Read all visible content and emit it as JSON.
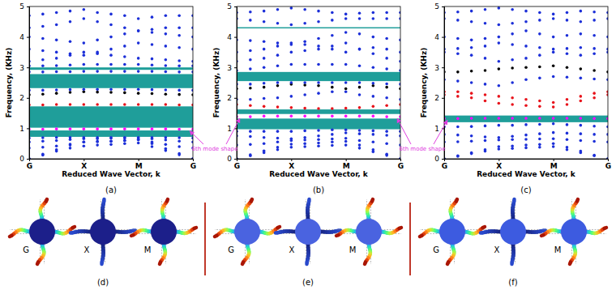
{
  "chart_data": [
    {
      "type": "scatter",
      "title": "(a)",
      "x_label": "Reduced Wave Vector, k",
      "y_label": "Frequency, (KHz)",
      "x": [
        0,
        0.25,
        0.5,
        0.75,
        1,
        1.25,
        1.5,
        1.75,
        2,
        2.25,
        2.5,
        2.75,
        3
      ],
      "xlim": [
        0,
        3
      ],
      "xticks": [
        {
          "value": 0,
          "label": "G"
        },
        {
          "value": 1,
          "label": "X"
        },
        {
          "value": 2,
          "label": "M"
        },
        {
          "value": 3,
          "label": "G"
        }
      ],
      "ylim": [
        0,
        5
      ],
      "yticks": [
        0,
        1,
        2,
        3,
        4,
        5
      ],
      "grid": false,
      "marker": "dot",
      "annotation": "6th mode shape",
      "band_gaps": [
        [
          0.72,
          0.93
        ],
        [
          1.02,
          1.72
        ],
        [
          2.32,
          2.78
        ],
        [
          2.92,
          3.0
        ]
      ],
      "series": [
        {
          "color": "#1c2fd8",
          "values": [
            0,
            0.12,
            0.25,
            0.35,
            0.42,
            0.45,
            0.47,
            0.5,
            0.52,
            0.4,
            0.27,
            0.13,
            0
          ]
        },
        {
          "color": "#1c2fd8",
          "values": [
            0,
            0.15,
            0.3,
            0.45,
            0.55,
            0.57,
            0.58,
            0.6,
            0.62,
            0.5,
            0.33,
            0.17,
            0
          ]
        },
        {
          "color": "#1c2fd8",
          "values": [
            0.35,
            0.38,
            0.42,
            0.48,
            0.55,
            0.56,
            0.57,
            0.6,
            0.63,
            0.55,
            0.47,
            0.4,
            0.35
          ]
        },
        {
          "color": "#1c2fd8",
          "values": [
            0.55,
            0.58,
            0.6,
            0.63,
            0.66,
            0.66,
            0.67,
            0.68,
            0.68,
            0.66,
            0.62,
            0.58,
            0.55
          ]
        },
        {
          "color": "#1c2fd8",
          "values": [
            0.68,
            0.69,
            0.7,
            0.7,
            0.7,
            0.7,
            0.7,
            0.7,
            0.7,
            0.7,
            0.7,
            0.69,
            0.68
          ]
        },
        {
          "color": "#ff00ff",
          "values": [
            0.97,
            0.97,
            0.98,
            0.98,
            0.98,
            0.98,
            0.98,
            0.98,
            0.98,
            0.98,
            0.98,
            0.97,
            0.97
          ]
        },
        {
          "color": "#e8141c",
          "values": [
            1.77,
            1.77,
            1.78,
            1.78,
            1.78,
            1.78,
            1.78,
            1.78,
            1.78,
            1.78,
            1.78,
            1.77,
            1.77
          ]
        },
        {
          "color": "#000000",
          "values": [
            2.1,
            2.12,
            2.15,
            2.18,
            2.2,
            2.19,
            2.18,
            2.17,
            2.15,
            2.14,
            2.12,
            2.11,
            2.1
          ]
        },
        {
          "color": "#1c2fd8",
          "values": [
            2.25,
            2.25,
            2.26,
            2.27,
            2.28,
            2.28,
            2.28,
            2.28,
            2.28,
            2.27,
            2.26,
            2.25,
            2.25
          ]
        },
        {
          "color": "#1c2fd8",
          "values": [
            2.85,
            2.85,
            2.86,
            2.86,
            2.87,
            2.87,
            2.87,
            2.87,
            2.87,
            2.87,
            2.86,
            2.85,
            2.85
          ]
        },
        {
          "color": "#1c2fd8",
          "values": [
            3.05,
            3.05,
            3.06,
            3.08,
            3.1,
            3.1,
            3.1,
            3.1,
            3.1,
            3.08,
            3.06,
            3.05,
            3.05
          ]
        },
        {
          "color": "#1c2fd8",
          "values": [
            3.2,
            3.25,
            3.3,
            3.4,
            3.5,
            3.45,
            3.4,
            3.35,
            3.3,
            3.28,
            3.25,
            3.22,
            3.2
          ]
        },
        {
          "color": "#1c2fd8",
          "values": [
            3.6,
            3.55,
            3.5,
            3.45,
            3.4,
            3.5,
            3.6,
            3.7,
            3.8,
            3.75,
            3.7,
            3.65,
            3.6
          ]
        },
        {
          "color": "#1c2fd8",
          "values": [
            4.0,
            3.95,
            3.9,
            3.85,
            3.8,
            3.9,
            4.0,
            4.1,
            4.2,
            4.15,
            4.1,
            4.05,
            4.0
          ]
        },
        {
          "color": "#1c2fd8",
          "values": [
            4.3,
            4.35,
            4.4,
            4.5,
            4.6,
            4.5,
            4.4,
            4.3,
            4.2,
            4.25,
            4.3,
            4.3,
            4.3
          ]
        },
        {
          "color": "#1c2fd8",
          "values": [
            4.7,
            4.75,
            4.8,
            4.85,
            4.9,
            4.8,
            4.75,
            4.7,
            4.6,
            4.65,
            4.7,
            4.7,
            4.7
          ]
        }
      ]
    },
    {
      "type": "scatter",
      "title": "(b)",
      "x_label": "Reduced Wave Vector, k",
      "y_label": "Frequency, (KHz)",
      "x": [
        0,
        0.25,
        0.5,
        0.75,
        1,
        1.25,
        1.5,
        1.75,
        2,
        2.25,
        2.5,
        2.75,
        3
      ],
      "xlim": [
        0,
        3
      ],
      "xticks": [
        {
          "value": 0,
          "label": "G"
        },
        {
          "value": 1,
          "label": "X"
        },
        {
          "value": 2,
          "label": "M"
        },
        {
          "value": 3,
          "label": "G"
        }
      ],
      "ylim": [
        0,
        5
      ],
      "yticks": [
        0,
        1,
        2,
        3,
        4,
        5
      ],
      "grid": false,
      "marker": "dot",
      "band_gaps": [
        [
          0.97,
          1.32
        ],
        [
          1.47,
          1.62
        ],
        [
          2.55,
          2.85
        ],
        [
          4.28,
          4.32
        ]
      ],
      "series": [
        {
          "color": "#1c2fd8",
          "values": [
            0,
            0.1,
            0.2,
            0.3,
            0.38,
            0.4,
            0.42,
            0.44,
            0.45,
            0.35,
            0.23,
            0.11,
            0
          ]
        },
        {
          "color": "#1c2fd8",
          "values": [
            0,
            0.13,
            0.26,
            0.38,
            0.48,
            0.5,
            0.52,
            0.55,
            0.57,
            0.45,
            0.3,
            0.15,
            0
          ]
        },
        {
          "color": "#1c2fd8",
          "values": [
            0.45,
            0.47,
            0.5,
            0.55,
            0.6,
            0.62,
            0.63,
            0.65,
            0.67,
            0.6,
            0.55,
            0.5,
            0.45
          ]
        },
        {
          "color": "#1c2fd8",
          "values": [
            0.75,
            0.73,
            0.7,
            0.68,
            0.66,
            0.7,
            0.75,
            0.8,
            0.85,
            0.82,
            0.8,
            0.77,
            0.75
          ]
        },
        {
          "color": "#1c2fd8",
          "values": [
            0.9,
            0.9,
            0.9,
            0.9,
            0.9,
            0.92,
            0.93,
            0.95,
            0.95,
            0.93,
            0.92,
            0.9,
            0.9
          ]
        },
        {
          "color": "#ff00ff",
          "values": [
            1.38,
            1.38,
            1.4,
            1.4,
            1.4,
            1.4,
            1.4,
            1.4,
            1.4,
            1.4,
            1.4,
            1.38,
            1.38
          ]
        },
        {
          "color": "#e8141c",
          "values": [
            1.78,
            1.75,
            1.72,
            1.7,
            1.68,
            1.66,
            1.65,
            1.65,
            1.66,
            1.68,
            1.72,
            1.75,
            1.78
          ]
        },
        {
          "color": "#1c2fd8",
          "values": [
            1.95,
            1.95,
            1.98,
            2.0,
            2.05,
            2.1,
            2.15,
            2.2,
            2.2,
            2.1,
            2.05,
            2.0,
            1.95
          ]
        },
        {
          "color": "#000000",
          "values": [
            2.3,
            2.32,
            2.35,
            2.4,
            2.45,
            2.42,
            2.4,
            2.35,
            2.3,
            2.35,
            2.4,
            2.35,
            2.3
          ]
        },
        {
          "color": "#1c2fd8",
          "values": [
            2.45,
            2.45,
            2.48,
            2.5,
            2.5,
            2.5,
            2.5,
            2.5,
            2.5,
            2.5,
            2.48,
            2.46,
            2.45
          ]
        },
        {
          "color": "#1c2fd8",
          "values": [
            2.9,
            2.95,
            3.0,
            3.05,
            3.1,
            3.1,
            3.1,
            3.1,
            3.1,
            3.05,
            3.0,
            2.95,
            2.9
          ]
        },
        {
          "color": "#1c2fd8",
          "values": [
            3.2,
            3.25,
            3.3,
            3.4,
            3.5,
            3.55,
            3.6,
            3.7,
            3.8,
            3.6,
            3.45,
            3.3,
            3.2
          ]
        },
        {
          "color": "#1c2fd8",
          "values": [
            3.5,
            3.55,
            3.6,
            3.7,
            3.8,
            3.75,
            3.7,
            3.6,
            3.5,
            3.6,
            3.65,
            3.6,
            3.5
          ]
        },
        {
          "color": "#1c2fd8",
          "values": [
            3.9,
            3.88,
            3.85,
            3.8,
            3.75,
            3.85,
            3.95,
            4.05,
            4.15,
            4.1,
            4.0,
            3.95,
            3.9
          ]
        },
        {
          "color": "#1c2fd8",
          "values": [
            4.6,
            4.55,
            4.5,
            4.45,
            4.4,
            4.45,
            4.5,
            4.55,
            4.6,
            4.6,
            4.6,
            4.6,
            4.6
          ]
        },
        {
          "color": "#1c2fd8",
          "values": [
            4.8,
            4.82,
            4.85,
            4.9,
            4.95,
            4.9,
            4.85,
            4.8,
            4.75,
            4.78,
            4.8,
            4.8,
            4.8
          ]
        }
      ]
    },
    {
      "type": "scatter",
      "title": "(c)",
      "x_label": "Reduced Wave Vector, k",
      "y_label": "Frequency, (KHz)",
      "x": [
        0,
        0.25,
        0.5,
        0.75,
        1,
        1.25,
        1.5,
        1.75,
        2,
        2.25,
        2.5,
        2.75,
        3
      ],
      "xlim": [
        0,
        3
      ],
      "xticks": [
        {
          "value": 0,
          "label": "G"
        },
        {
          "value": 1,
          "label": "X"
        },
        {
          "value": 2,
          "label": "M"
        },
        {
          "value": 3,
          "label": "G"
        }
      ],
      "ylim": [
        0,
        5
      ],
      "yticks": [
        0,
        1,
        2,
        3,
        4,
        5
      ],
      "grid": false,
      "marker": "dot",
      "annotation": "6th mode shape",
      "band_gaps": [
        [
          1.2,
          1.42
        ]
      ],
      "series": [
        {
          "color": "#1c2fd8",
          "values": [
            0,
            0.08,
            0.17,
            0.25,
            0.32,
            0.34,
            0.36,
            0.38,
            0.4,
            0.3,
            0.2,
            0.1,
            0
          ]
        },
        {
          "color": "#1c2fd8",
          "values": [
            0,
            0.1,
            0.2,
            0.3,
            0.4,
            0.42,
            0.45,
            0.47,
            0.5,
            0.38,
            0.25,
            0.12,
            0
          ]
        },
        {
          "color": "#1c2fd8",
          "values": [
            0.55,
            0.56,
            0.58,
            0.6,
            0.62,
            0.63,
            0.64,
            0.65,
            0.66,
            0.63,
            0.6,
            0.57,
            0.55
          ]
        },
        {
          "color": "#1c2fd8",
          "values": [
            0.8,
            0.78,
            0.75,
            0.72,
            0.7,
            0.74,
            0.78,
            0.82,
            0.86,
            0.84,
            0.82,
            0.8,
            0.8
          ]
        },
        {
          "color": "#1c2fd8",
          "values": [
            1.05,
            1.05,
            1.06,
            1.08,
            1.1,
            1.1,
            1.12,
            1.13,
            1.15,
            1.12,
            1.1,
            1.07,
            1.05
          ]
        },
        {
          "color": "#ff00ff",
          "values": [
            1.32,
            1.32,
            1.33,
            1.33,
            1.33,
            1.33,
            1.33,
            1.33,
            1.33,
            1.33,
            1.33,
            1.32,
            1.32
          ]
        },
        {
          "color": "#e8141c",
          "values": [
            2.1,
            2.05,
            2.0,
            1.9,
            1.82,
            1.78,
            1.75,
            1.72,
            1.7,
            1.78,
            1.9,
            2.0,
            2.1
          ]
        },
        {
          "color": "#e8141c",
          "values": [
            2.2,
            2.2,
            2.15,
            2.1,
            2.05,
            2.0,
            1.95,
            1.9,
            1.85,
            1.95,
            2.05,
            2.15,
            2.2
          ]
        },
        {
          "color": "#1c2fd8",
          "values": [
            2.6,
            2.55,
            2.5,
            2.45,
            2.4,
            2.5,
            2.6,
            2.65,
            2.7,
            2.68,
            2.65,
            2.62,
            2.6
          ]
        },
        {
          "color": "#000000",
          "values": [
            2.85,
            2.85,
            2.88,
            2.9,
            2.95,
            2.98,
            3.0,
            3.02,
            3.05,
            3.0,
            2.95,
            2.9,
            2.85
          ]
        },
        {
          "color": "#1c2fd8",
          "values": [
            3.5,
            3.45,
            3.4,
            3.3,
            3.2,
            3.25,
            3.3,
            3.4,
            3.5,
            3.45,
            3.4,
            3.45,
            3.5
          ]
        },
        {
          "color": "#1c2fd8",
          "values": [
            3.6,
            3.62,
            3.65,
            3.7,
            3.8,
            3.75,
            3.7,
            3.65,
            3.6,
            3.62,
            3.65,
            3.62,
            3.6
          ]
        },
        {
          "color": "#1c2fd8",
          "values": [
            4.0,
            3.95,
            3.9,
            3.95,
            4.0,
            4.1,
            4.2,
            4.1,
            4.0,
            4.05,
            4.1,
            4.05,
            4.0
          ]
        },
        {
          "color": "#1c2fd8",
          "values": [
            4.6,
            4.55,
            4.5,
            4.45,
            4.4,
            4.45,
            4.5,
            4.55,
            4.6,
            4.55,
            4.5,
            4.55,
            4.6
          ]
        },
        {
          "color": "#1c2fd8",
          "values": [
            4.8,
            4.82,
            4.85,
            4.9,
            4.95,
            4.9,
            4.85,
            4.8,
            4.75,
            4.8,
            4.85,
            4.82,
            4.8
          ]
        }
      ]
    }
  ],
  "mode_shapes": [
    {
      "label": "(d)",
      "points": [
        "G",
        "X",
        "M"
      ]
    },
    {
      "label": "(e)",
      "points": [
        "G",
        "X",
        "M"
      ]
    },
    {
      "label": "(f)",
      "points": [
        "G",
        "X",
        "M"
      ]
    }
  ]
}
